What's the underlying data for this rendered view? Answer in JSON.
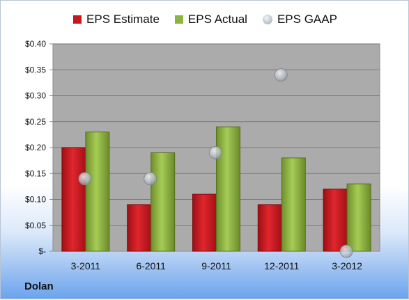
{
  "colors": {
    "estimate": "#c8161d",
    "actual": "#8db43d",
    "gaap": "#b5bcc6",
    "plot_bg": "#ababab"
  },
  "source_label": "Dolan",
  "chart_data": {
    "type": "bar",
    "categories": [
      "3-2011",
      "6-2011",
      "9-2011",
      "12-2011",
      "3-2012"
    ],
    "series": [
      {
        "name": "EPS Estimate",
        "kind": "bar",
        "values": [
          0.2,
          0.09,
          0.11,
          0.09,
          0.12
        ]
      },
      {
        "name": "EPS Actual",
        "kind": "bar",
        "values": [
          0.23,
          0.19,
          0.24,
          0.18,
          0.13
        ]
      },
      {
        "name": "EPS GAAP",
        "kind": "scatter",
        "values": [
          0.14,
          0.14,
          0.19,
          0.34,
          0.0
        ]
      }
    ],
    "ylim": [
      0,
      0.4
    ],
    "yticks": [
      0,
      0.05,
      0.1,
      0.15,
      0.2,
      0.25,
      0.3,
      0.35,
      0.4
    ],
    "ytick_labels": [
      "$-",
      "$0.05",
      "$0.10",
      "$0.15",
      "$0.20",
      "$0.25",
      "$0.30",
      "$0.35",
      "$0.40"
    ],
    "legend_position": "top",
    "grid": true
  }
}
